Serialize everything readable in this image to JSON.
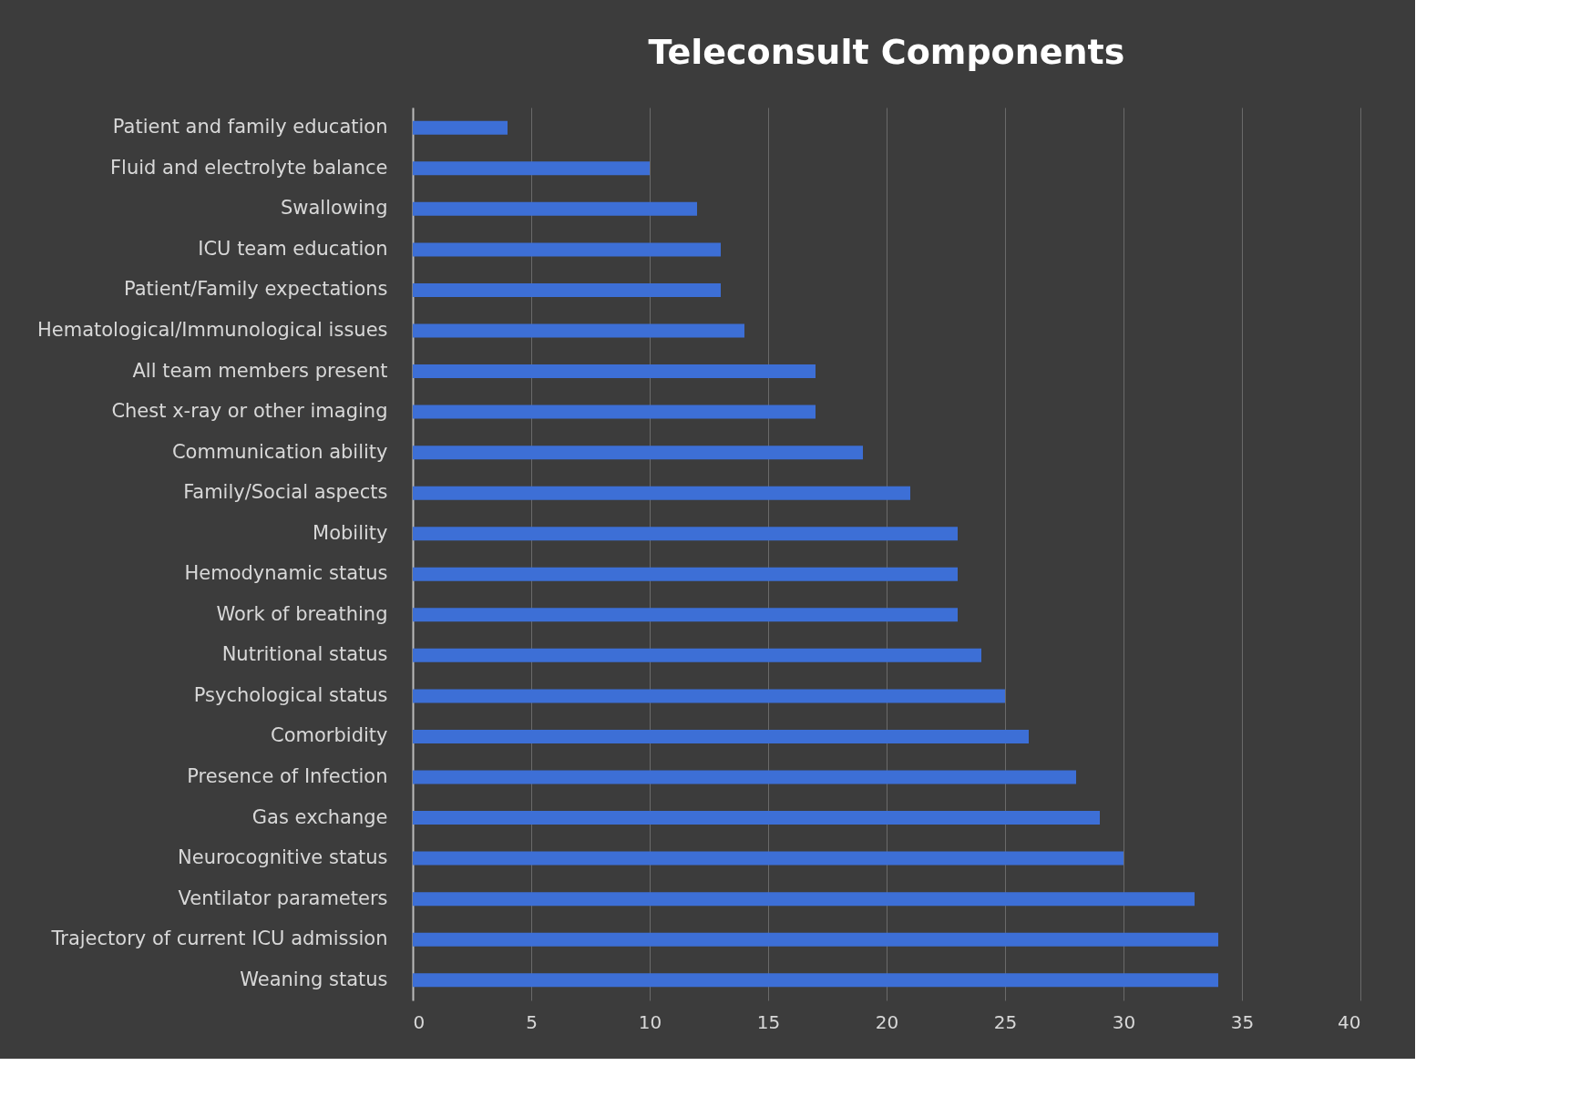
{
  "chart_data": {
    "type": "bar",
    "orientation": "horizontal",
    "title": "Teleconsult Components",
    "categories": [
      "Patient and family education",
      "Fluid and electrolyte balance",
      "Swallowing",
      "ICU team education",
      "Patient/Family expectations",
      "Hematological/Immunological issues",
      "All team members present",
      "Chest x-ray or other imaging",
      "Communication ability",
      "Family/Social aspects",
      "Mobility",
      "Hemodynamic status",
      "Work of breathing",
      "Nutritional status",
      "Psychological status",
      "Comorbidity",
      "Presence of Infection",
      "Gas exchange",
      "Neurocognitive status",
      "Ventilator parameters",
      "Trajectory of current ICU admission",
      "Weaning status"
    ],
    "values": [
      4,
      10,
      12,
      13,
      13,
      14,
      17,
      17,
      19,
      21,
      23,
      23,
      23,
      24,
      25,
      26,
      28,
      29,
      30,
      33,
      34,
      34
    ],
    "color": "#3d6fd6",
    "xlim": [
      0,
      40
    ],
    "xticks": [
      0,
      5,
      10,
      15,
      20,
      25,
      30,
      35,
      40
    ],
    "grid": "x"
  }
}
